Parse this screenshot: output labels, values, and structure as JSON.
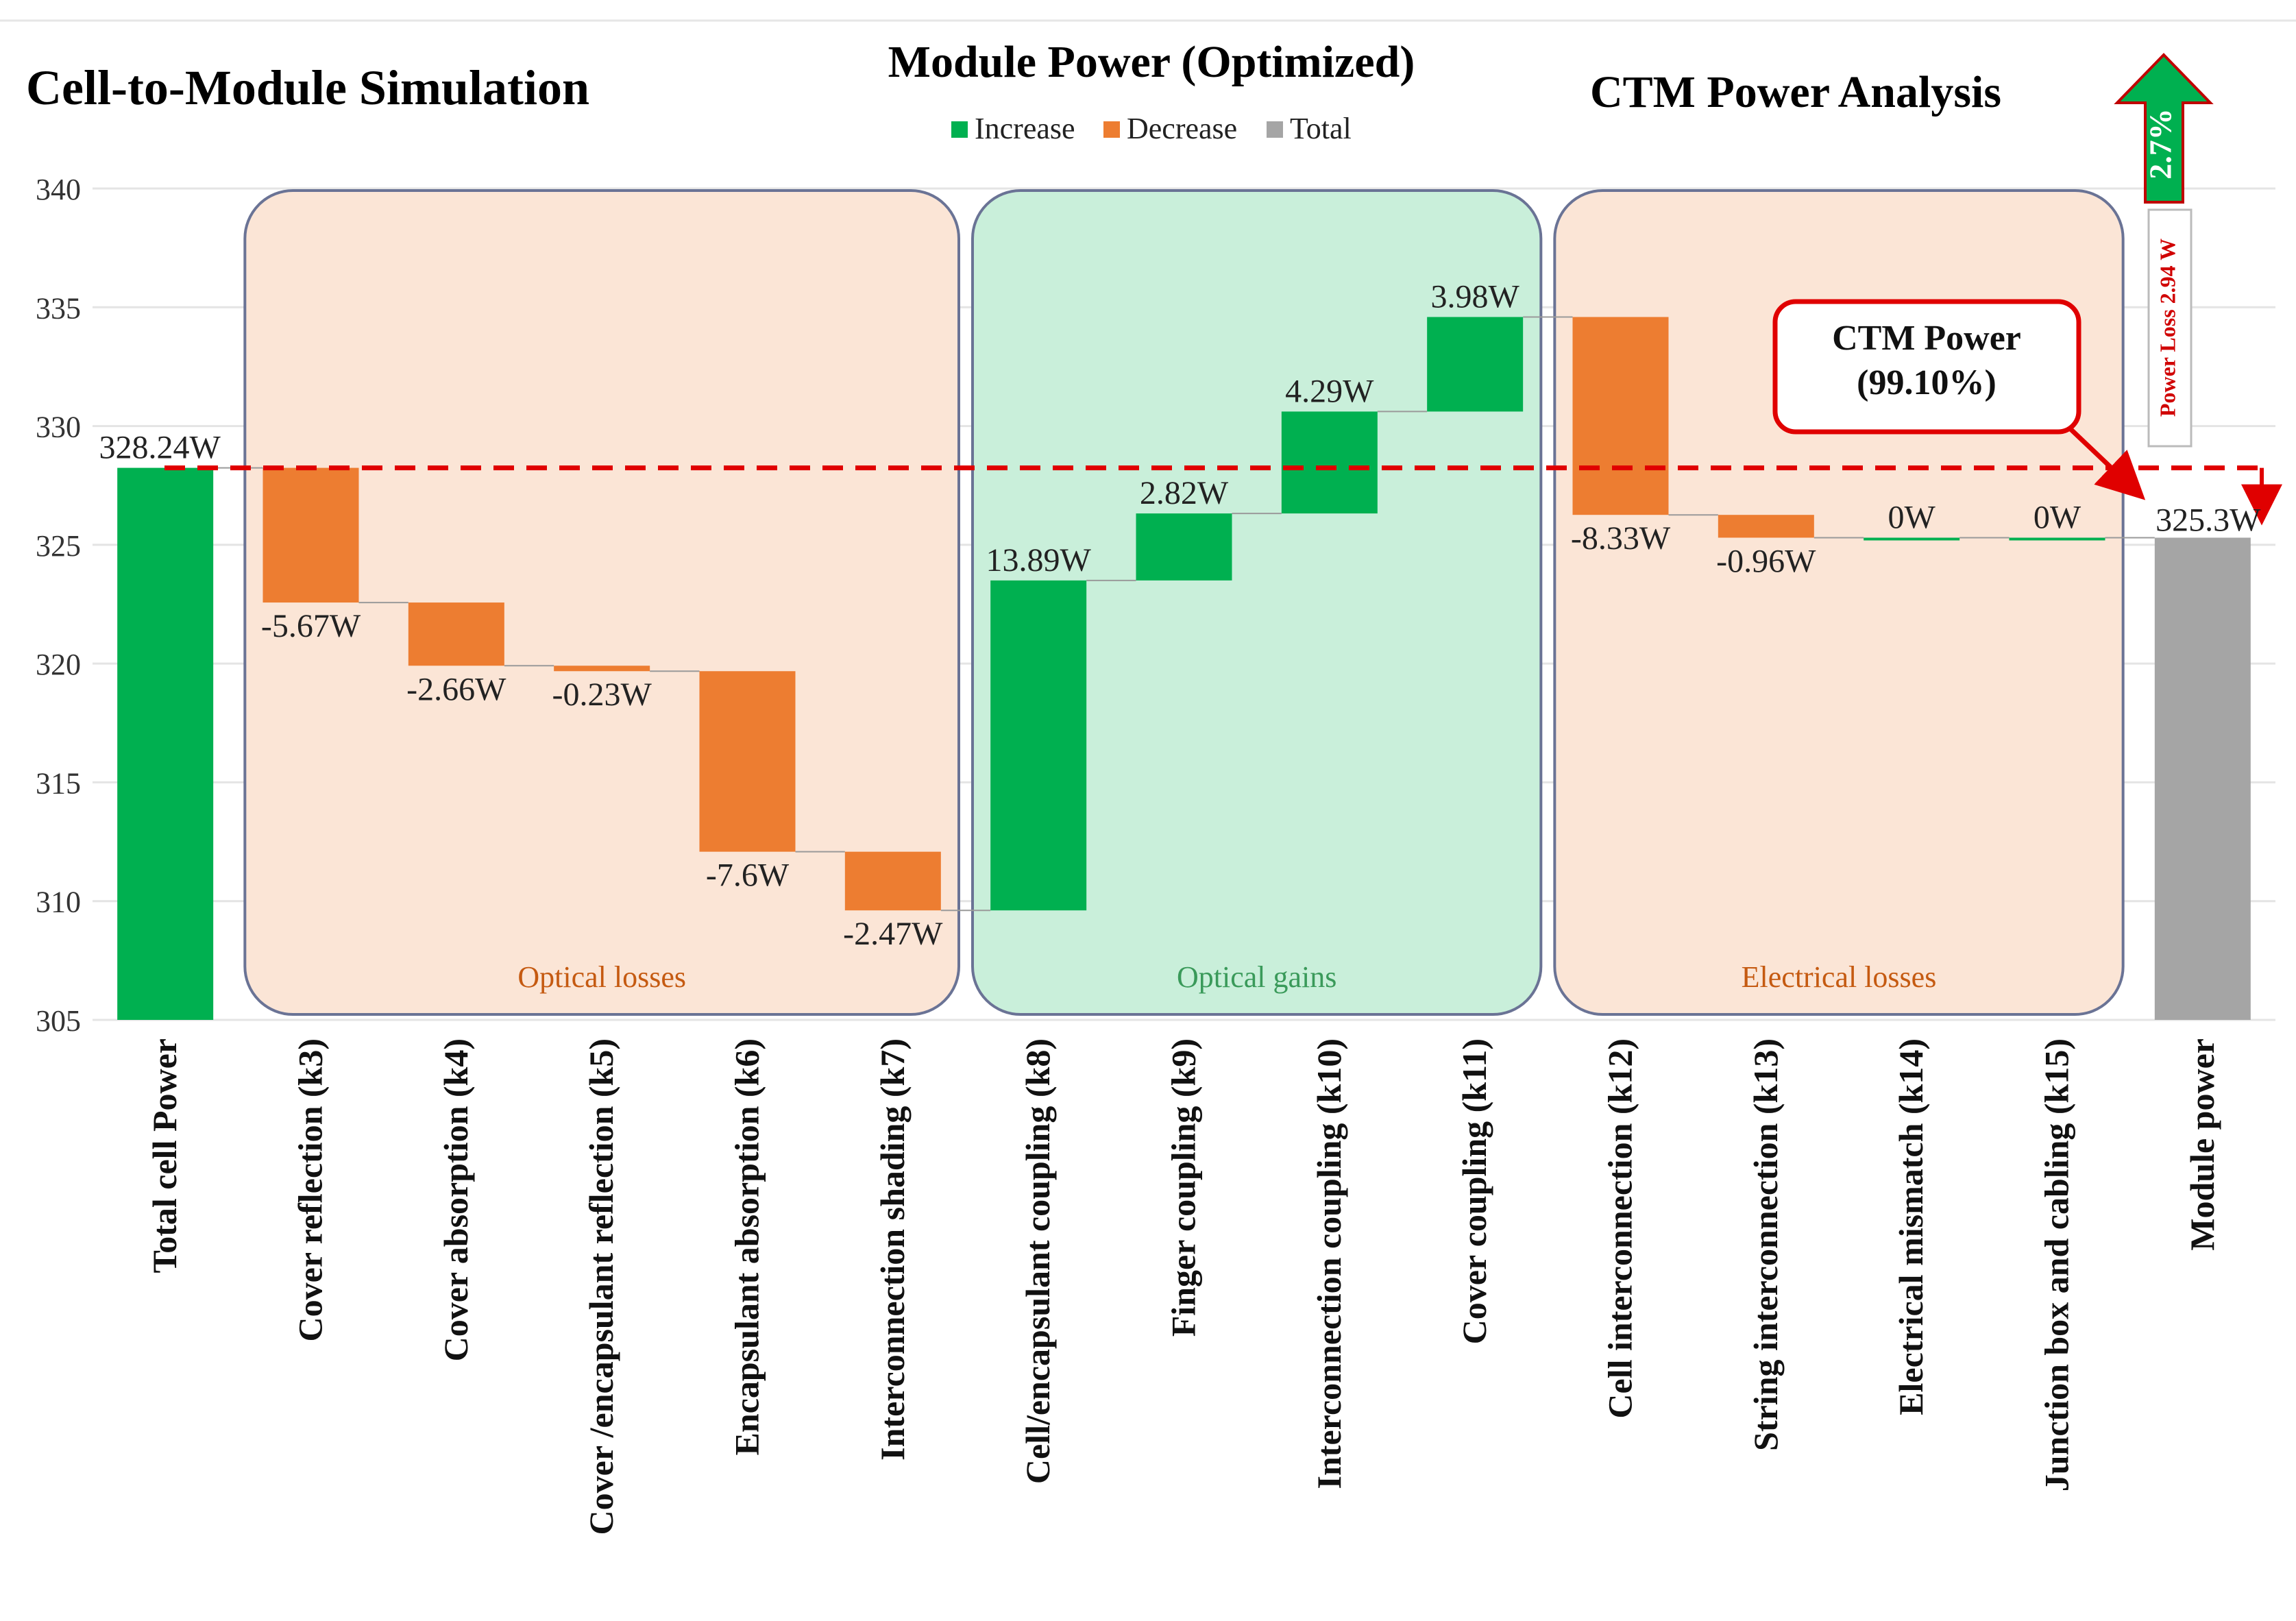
{
  "header": {
    "left_title": "Cell-to-Module Simulation",
    "center_title": "Module Power (Optimized)",
    "right_title": "CTM Power Analysis"
  },
  "legend": {
    "placement": "top-center",
    "items": [
      {
        "label": "Increase",
        "color": "#00b050"
      },
      {
        "label": "Decrease",
        "color": "#ed7d31"
      },
      {
        "label": "Total",
        "color": "#a5a5a5"
      }
    ]
  },
  "groups": [
    {
      "label": "Optical losses",
      "first": 1,
      "last": 5,
      "fill": "#fbe5d6",
      "text_color": "#c55a11"
    },
    {
      "label": "Optical gains",
      "first": 6,
      "last": 9,
      "fill": "#c9efda",
      "text_color": "#3a9a5a"
    },
    {
      "label": "Electrical losses",
      "first": 10,
      "last": 13,
      "fill": "#fbe5d6",
      "text_color": "#c55a11"
    }
  ],
  "annotations": {
    "ctm_box_line1": "CTM Power",
    "ctm_box_line2": "(99.10%)",
    "arrow_percent": "2.7%",
    "power_loss": "Power Loss 2.94 W"
  },
  "chart_data": {
    "type": "bar",
    "subtype": "waterfall",
    "ylim": [
      305,
      340
    ],
    "yticks": [
      305,
      310,
      315,
      320,
      325,
      330,
      335,
      340
    ],
    "grid": true,
    "reference_line": 328.24,
    "categories": [
      "Total cell Power",
      "Cover reflection (k3)",
      "Cover absorption (k4)",
      "Cover /encapsulant reflection (k5)",
      "Encapsulant absorption (k6)",
      "Interconnection shading (k7)",
      "Cell/encapsulant coupling (k8)",
      "Finger coupling (k9)",
      "Interconnection coupling (k10)",
      "Cover coupling (k11)",
      "Cell interconnection (k12)",
      "String interconnection (k13)",
      "Electrical mismatch (k14)",
      "Junction box and cabling (k15)",
      "Module power"
    ],
    "values": [
      328.24,
      -5.67,
      -2.66,
      -0.23,
      -7.6,
      -2.47,
      13.89,
      2.82,
      4.29,
      3.98,
      -8.33,
      -0.96,
      0,
      0,
      325.3
    ],
    "kinds": [
      "start",
      "decrease",
      "decrease",
      "decrease",
      "decrease",
      "decrease",
      "increase",
      "increase",
      "increase",
      "increase",
      "decrease",
      "decrease",
      "increase",
      "increase",
      "total"
    ],
    "data_labels": [
      "328.24W",
      "-5.67W",
      "-2.66W",
      "-0.23W",
      "-7.6W",
      "-2.47W",
      "13.89W",
      "2.82W",
      "4.29W",
      "3.98W",
      "-8.33W",
      "-0.96W",
      "0W",
      "0W",
      "325.3W"
    ]
  }
}
